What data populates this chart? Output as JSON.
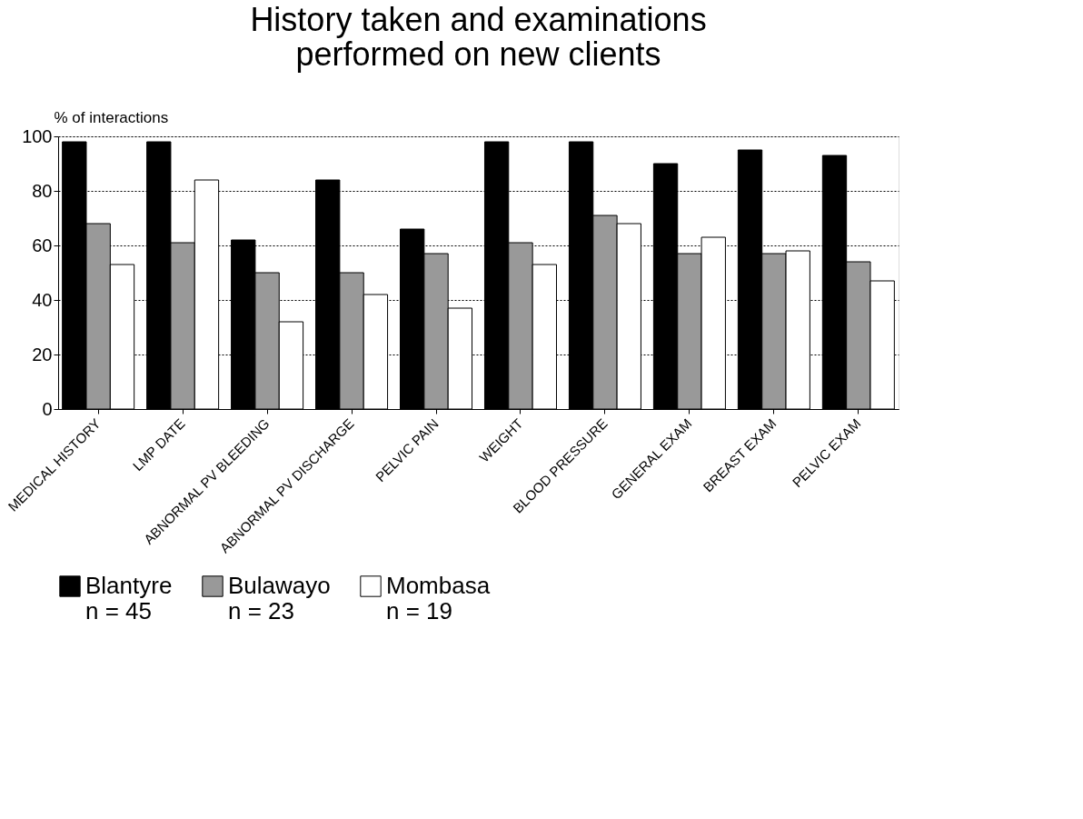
{
  "chart_data": {
    "type": "bar",
    "title": [
      "History taken and examinations",
      "performed on new clients"
    ],
    "ylabel": "% of interactions",
    "categories": [
      "MEDICAL HISTORY",
      "LMP DATE",
      "ABNORMAL PV BLEEDING",
      "ABNORMAL PV DISCHARGE",
      "PELVIC PAIN",
      "WEIGHT",
      "BLOOD PRESSURE",
      "GENERAL EXAM",
      "BREAST EXAM",
      "PELVIC EXAM"
    ],
    "series": [
      {
        "name": "Blantyre\nn = 45",
        "color": "#000000",
        "values": [
          98,
          98,
          62,
          84,
          66,
          98,
          98,
          90,
          95,
          93
        ]
      },
      {
        "name": "Bulawayo\nn = 23",
        "color": "#999999",
        "values": [
          68,
          61,
          50,
          50,
          57,
          61,
          71,
          57,
          57,
          54
        ]
      },
      {
        "name": "Mombasa\nn = 19",
        "color": "#ffffff",
        "values": [
          53,
          84,
          32,
          42,
          37,
          53,
          68,
          63,
          58,
          47
        ]
      }
    ],
    "ylim": [
      0,
      100
    ],
    "yticks": [
      0,
      20,
      40,
      60,
      80,
      100
    ],
    "grid": "y",
    "legend": "bottom"
  }
}
